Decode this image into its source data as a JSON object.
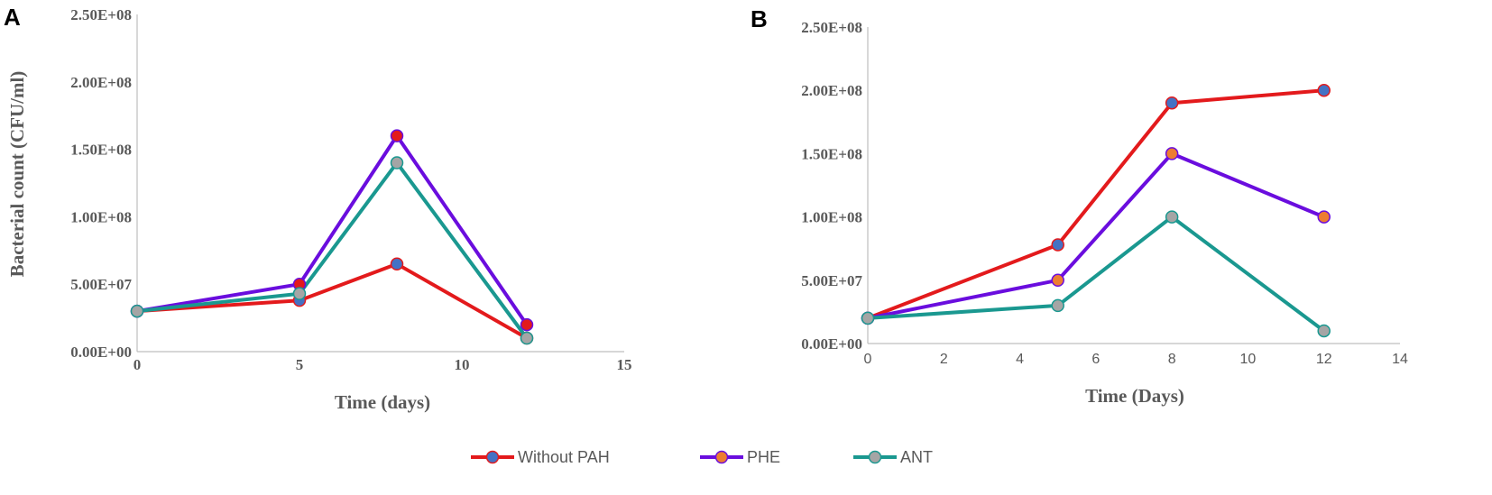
{
  "chart_data": [
    {
      "panel": "A",
      "type": "line",
      "xlabel": "Time (days)",
      "ylabel": "Bacterial count (CFU/ml)",
      "xlim": [
        0,
        15
      ],
      "ylim": [
        0,
        250000000
      ],
      "x_ticks": [
        "0",
        "5",
        "10",
        "15"
      ],
      "y_ticks": [
        "0.00E+00",
        "5.00E+07",
        "1.00E+08",
        "1.50E+08",
        "2.00E+08",
        "2.50E+08"
      ],
      "x": [
        0,
        5,
        8,
        12
      ],
      "series": [
        {
          "name": "Without PAH",
          "values": [
            30000000,
            38000000,
            65000000,
            10000000
          ]
        },
        {
          "name": "PHE",
          "values": [
            30000000,
            50000000,
            160000000,
            20000000
          ]
        },
        {
          "name": "ANT",
          "values": [
            30000000,
            43000000,
            140000000,
            10000000
          ]
        }
      ]
    },
    {
      "panel": "B",
      "type": "line",
      "xlabel": "Time (Days)",
      "ylabel": "",
      "xlim": [
        0,
        14
      ],
      "ylim": [
        0,
        250000000
      ],
      "x_ticks": [
        "0",
        "2",
        "4",
        "6",
        "8",
        "10",
        "12",
        "14"
      ],
      "y_ticks": [
        "0.00E+00",
        "5.00E+07",
        "1.00E+08",
        "1.50E+08",
        "2.00E+08",
        "2.50E+08"
      ],
      "x": [
        0,
        5,
        8,
        12
      ],
      "series": [
        {
          "name": "Without PAH",
          "values": [
            20000000,
            78000000,
            190000000,
            200000000
          ]
        },
        {
          "name": "PHE",
          "values": [
            20000000,
            50000000,
            150000000,
            100000000
          ]
        },
        {
          "name": "ANT",
          "values": [
            20000000,
            30000000,
            100000000,
            10000000
          ]
        }
      ]
    }
  ],
  "legend": [
    {
      "name": "Without PAH",
      "line_color": "#e31a1c",
      "marker_color": "#4472c4"
    },
    {
      "name": "PHE",
      "line_color": "#6a0dde",
      "marker_color": "#ed7d31"
    },
    {
      "name": "ANT",
      "line_color": "#1a9890",
      "marker_color": "#a5a5a5"
    }
  ],
  "panel_A_marker_colors": {
    "Without PAH": "#4472c4",
    "PHE": "#e31a1c",
    "ANT": "#a5a5a5"
  },
  "panel_B_marker_colors": {
    "Without PAH": "#4472c4",
    "PHE": "#ed7d31",
    "ANT": "#a5a5a5"
  }
}
